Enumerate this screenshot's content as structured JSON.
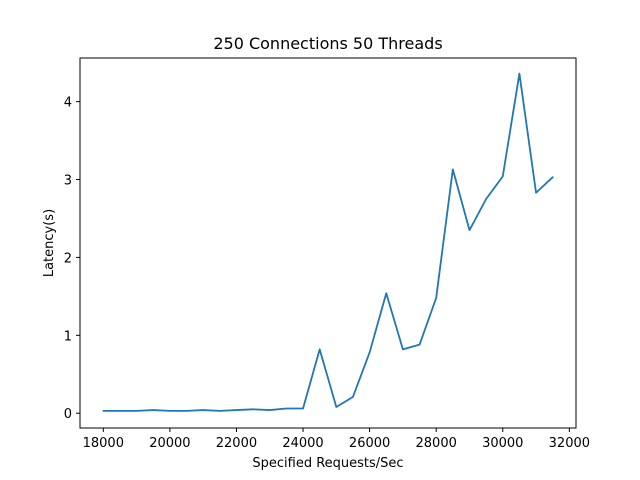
{
  "chart_data": {
    "type": "line",
    "title": "250 Connections 50 Threads",
    "xlabel": "Specified Requests/Sec",
    "ylabel": "Latency(s)",
    "xlim": [
      17300,
      32200
    ],
    "ylim": [
      -0.19,
      4.56
    ],
    "xticks": [
      18000,
      20000,
      22000,
      24000,
      26000,
      28000,
      30000,
      32000
    ],
    "yticks": [
      0,
      1,
      2,
      3,
      4
    ],
    "grid": false,
    "line_color": "#1f77b4",
    "series": [
      {
        "x": [
          18000,
          18500,
          19000,
          19500,
          20000,
          20500,
          21000,
          21500,
          22000,
          22500,
          23000,
          23500,
          24000,
          24500,
          25000,
          25500,
          26000,
          26500,
          27000,
          27500,
          28000,
          28500,
          29000,
          29500,
          30000,
          30500,
          31000,
          31500
        ],
        "y": [
          0.03,
          0.03,
          0.03,
          0.04,
          0.03,
          0.03,
          0.04,
          0.03,
          0.04,
          0.05,
          0.04,
          0.06,
          0.06,
          0.82,
          0.08,
          0.21,
          0.78,
          1.54,
          0.82,
          0.88,
          1.48,
          3.13,
          2.35,
          2.75,
          3.04,
          4.36,
          2.83,
          3.03
        ]
      }
    ]
  }
}
